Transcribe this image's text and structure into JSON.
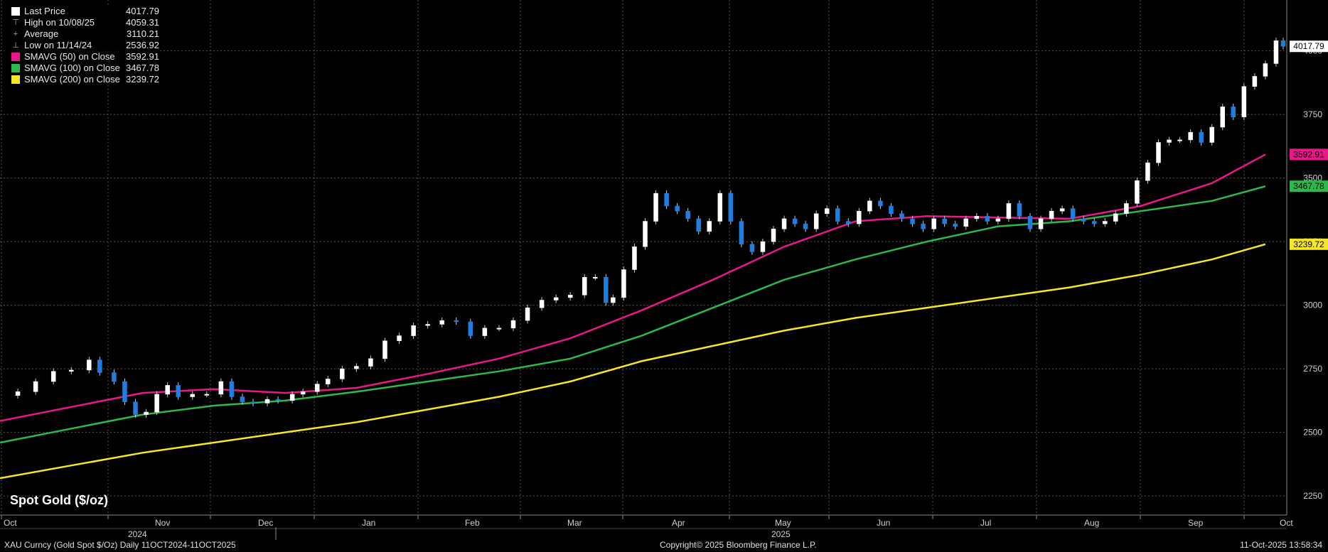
{
  "chart_data": {
    "type": "candlestick",
    "title": "Spot Gold ($/oz)",
    "x_months": [
      "Oct",
      "Nov",
      "Dec",
      "Jan",
      "Feb",
      "Mar",
      "Apr",
      "May",
      "Jun",
      "Jul",
      "Aug",
      "Sep",
      "Oct"
    ],
    "x_years": [
      "2024",
      "2025"
    ],
    "y_ticks": [
      2250,
      2500,
      2750,
      3000,
      3250,
      3500,
      3750,
      4000
    ],
    "ylim": [
      2175,
      4200
    ],
    "grid": true,
    "legend_position": "top-left",
    "legend": [
      {
        "label": "Last Price",
        "value": "4017.79",
        "color": "#ffffff",
        "kind": "box"
      },
      {
        "label": "High on 10/08/25",
        "value": "4059.31",
        "color": "#aaaaaa",
        "kind": "high"
      },
      {
        "label": "Average",
        "value": "3110.21",
        "color": "#aaaaaa",
        "kind": "avg"
      },
      {
        "label": "Low on 11/14/24",
        "value": "2536.92",
        "color": "#aaaaaa",
        "kind": "low"
      },
      {
        "label": "SMAVG (50)  on Close",
        "value": "3592.91",
        "color": "#e8178a",
        "kind": "box"
      },
      {
        "label": "SMAVG (100)  on Close",
        "value": "3467.78",
        "color": "#2db84b",
        "kind": "box"
      },
      {
        "label": "SMAVG (200)  on Close",
        "value": "3239.72",
        "color": "#f5e62a",
        "kind": "box"
      }
    ],
    "price_series": {
      "name": "Last Price",
      "close": [
        [
          0,
          2645
        ],
        [
          0.5,
          2660
        ],
        [
          1.0,
          2700
        ],
        [
          1.5,
          2740
        ],
        [
          2.0,
          2745
        ],
        [
          2.5,
          2785
        ],
        [
          2.8,
          2735
        ],
        [
          3.2,
          2700
        ],
        [
          3.5,
          2620
        ],
        [
          3.8,
          2570
        ],
        [
          4.1,
          2580
        ],
        [
          4.4,
          2650
        ],
        [
          4.7,
          2685
        ],
        [
          5.0,
          2640
        ],
        [
          5.4,
          2650
        ],
        [
          5.8,
          2650
        ],
        [
          6.2,
          2700
        ],
        [
          6.5,
          2640
        ],
        [
          6.8,
          2620
        ],
        [
          7.1,
          2615
        ],
        [
          7.5,
          2630
        ],
        [
          7.8,
          2625
        ],
        [
          8.2,
          2650
        ],
        [
          8.5,
          2660
        ],
        [
          8.9,
          2690
        ],
        [
          9.2,
          2710
        ],
        [
          9.6,
          2750
        ],
        [
          10.0,
          2760
        ],
        [
          10.4,
          2790
        ],
        [
          10.8,
          2860
        ],
        [
          11.2,
          2880
        ],
        [
          11.6,
          2920
        ],
        [
          12.0,
          2925
        ],
        [
          12.4,
          2940
        ],
        [
          12.8,
          2935
        ],
        [
          13.2,
          2880
        ],
        [
          13.6,
          2910
        ],
        [
          14.0,
          2910
        ],
        [
          14.4,
          2940
        ],
        [
          14.8,
          2990
        ],
        [
          15.2,
          3020
        ],
        [
          15.6,
          3030
        ],
        [
          16.0,
          3040
        ],
        [
          16.4,
          3110
        ],
        [
          16.7,
          3110
        ],
        [
          17.0,
          3010
        ],
        [
          17.2,
          3030
        ],
        [
          17.5,
          3140
        ],
        [
          17.8,
          3230
        ],
        [
          18.1,
          3330
        ],
        [
          18.4,
          3440
        ],
        [
          18.7,
          3390
        ],
        [
          19.0,
          3370
        ],
        [
          19.3,
          3340
        ],
        [
          19.6,
          3290
        ],
        [
          19.9,
          3330
        ],
        [
          20.2,
          3440
        ],
        [
          20.5,
          3330
        ],
        [
          20.8,
          3240
        ],
        [
          21.1,
          3210
        ],
        [
          21.4,
          3250
        ],
        [
          21.7,
          3300
        ],
        [
          22.0,
          3340
        ],
        [
          22.3,
          3320
        ],
        [
          22.6,
          3300
        ],
        [
          22.9,
          3360
        ],
        [
          23.2,
          3380
        ],
        [
          23.5,
          3330
        ],
        [
          23.8,
          3320
        ],
        [
          24.1,
          3370
        ],
        [
          24.4,
          3410
        ],
        [
          24.7,
          3390
        ],
        [
          25.0,
          3360
        ],
        [
          25.3,
          3340
        ],
        [
          25.6,
          3320
        ],
        [
          25.9,
          3300
        ],
        [
          26.2,
          3340
        ],
        [
          26.5,
          3320
        ],
        [
          26.8,
          3310
        ],
        [
          27.1,
          3340
        ],
        [
          27.4,
          3350
        ],
        [
          27.7,
          3330
        ],
        [
          28.0,
          3340
        ],
        [
          28.3,
          3400
        ],
        [
          28.6,
          3350
        ],
        [
          28.9,
          3300
        ],
        [
          29.2,
          3340
        ],
        [
          29.5,
          3370
        ],
        [
          29.8,
          3380
        ],
        [
          30.1,
          3340
        ],
        [
          30.4,
          3330
        ],
        [
          30.7,
          3320
        ],
        [
          31.0,
          3330
        ],
        [
          31.3,
          3360
        ],
        [
          31.6,
          3400
        ],
        [
          31.9,
          3490
        ],
        [
          32.2,
          3560
        ],
        [
          32.5,
          3640
        ],
        [
          32.8,
          3650
        ],
        [
          33.1,
          3650
        ],
        [
          33.4,
          3680
        ],
        [
          33.7,
          3640
        ],
        [
          34.0,
          3700
        ],
        [
          34.3,
          3780
        ],
        [
          34.6,
          3740
        ],
        [
          34.9,
          3860
        ],
        [
          35.2,
          3900
        ],
        [
          35.5,
          3950
        ],
        [
          35.8,
          4040
        ],
        [
          36.0,
          4017.79
        ]
      ]
    },
    "sma_series": [
      {
        "name": "SMAVG (50)  on Close",
        "color": "#e8178a",
        "points": [
          [
            0,
            2545
          ],
          [
            2,
            2600
          ],
          [
            4,
            2655
          ],
          [
            6,
            2670
          ],
          [
            8,
            2655
          ],
          [
            10,
            2675
          ],
          [
            12,
            2730
          ],
          [
            14,
            2790
          ],
          [
            16,
            2870
          ],
          [
            18,
            2980
          ],
          [
            20,
            3100
          ],
          [
            22,
            3230
          ],
          [
            24,
            3330
          ],
          [
            26,
            3350
          ],
          [
            28,
            3345
          ],
          [
            30,
            3340
          ],
          [
            32,
            3390
          ],
          [
            34,
            3480
          ],
          [
            35.5,
            3592.91
          ]
        ]
      },
      {
        "name": "SMAVG (100)  on Close",
        "color": "#2db84b",
        "points": [
          [
            0,
            2460
          ],
          [
            2,
            2515
          ],
          [
            4,
            2570
          ],
          [
            6,
            2605
          ],
          [
            8,
            2625
          ],
          [
            10,
            2660
          ],
          [
            12,
            2700
          ],
          [
            14,
            2740
          ],
          [
            16,
            2790
          ],
          [
            18,
            2880
          ],
          [
            20,
            2990
          ],
          [
            22,
            3100
          ],
          [
            24,
            3180
          ],
          [
            26,
            3250
          ],
          [
            28,
            3310
          ],
          [
            30,
            3330
          ],
          [
            32,
            3370
          ],
          [
            34,
            3410
          ],
          [
            35.5,
            3467.78
          ]
        ]
      },
      {
        "name": "SMAVG (200)  on Close",
        "color": "#f5e62a",
        "points": [
          [
            0,
            2320
          ],
          [
            2,
            2370
          ],
          [
            4,
            2420
          ],
          [
            6,
            2460
          ],
          [
            8,
            2500
          ],
          [
            10,
            2540
          ],
          [
            12,
            2590
          ],
          [
            14,
            2640
          ],
          [
            16,
            2700
          ],
          [
            18,
            2780
          ],
          [
            20,
            2840
          ],
          [
            22,
            2900
          ],
          [
            24,
            2950
          ],
          [
            26,
            2990
          ],
          [
            28,
            3030
          ],
          [
            30,
            3070
          ],
          [
            32,
            3120
          ],
          [
            34,
            3180
          ],
          [
            35.5,
            3239.72
          ]
        ]
      }
    ],
    "right_labels": [
      {
        "value": 4017.79,
        "text": "4017.79",
        "bg": "#ffffff",
        "fg": "#000000"
      },
      {
        "value": 3592.91,
        "text": "3592.91",
        "bg": "#e8178a",
        "fg": "#000000"
      },
      {
        "value": 3467.78,
        "text": "3467.78",
        "bg": "#2db84b",
        "fg": "#000000"
      },
      {
        "value": 3239.72,
        "text": "3239.72",
        "bg": "#f5e62a",
        "fg": "#000000"
      }
    ]
  },
  "footer": {
    "left": "XAU Curncy (Gold Spot  $/Oz) Daily 11OCT2024-11OCT2025",
    "center": "Copyright© 2025 Bloomberg Finance L.P.",
    "right": "11-Oct-2025 13:58:34"
  }
}
